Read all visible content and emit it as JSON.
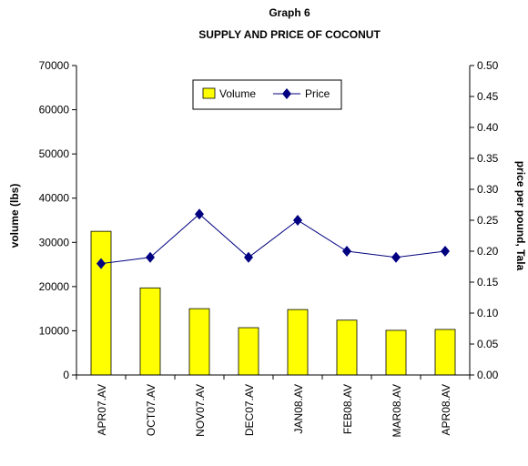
{
  "chart_data": {
    "type": "bar",
    "title": "Graph 6",
    "subtitle": "SUPPLY AND PRICE OF COCONUT",
    "categories": [
      "APR07.AV",
      "OCT07.AV",
      "NOV07.AV",
      "DEC07.AV",
      "JAN08.AV",
      "FEB08.AV",
      "MAR08.AV",
      "APR08.AV"
    ],
    "series": [
      {
        "name": "Volume",
        "type": "bar",
        "axis": "left",
        "color": "#ffff00",
        "values": [
          32500,
          19700,
          15000,
          10700,
          14800,
          12400,
          10100,
          10300
        ]
      },
      {
        "name": "Price",
        "type": "line",
        "axis": "right",
        "color": "#000080",
        "values": [
          0.18,
          0.19,
          0.26,
          0.19,
          0.25,
          0.2,
          0.19,
          0.2
        ]
      }
    ],
    "ylabel": "volume (lbs)",
    "y2label": "price per pound, Tala",
    "ylim": [
      0,
      70000
    ],
    "yticks": [
      "0",
      "10000",
      "20000",
      "30000",
      "40000",
      "50000",
      "60000",
      "70000"
    ],
    "y2lim": [
      0,
      0.5
    ],
    "y2ticks": [
      "0.00",
      "0.05",
      "0.10",
      "0.15",
      "0.20",
      "0.25",
      "0.30",
      "0.35",
      "0.40",
      "0.45",
      "0.50"
    ],
    "grid": false,
    "legend": "top-center"
  }
}
